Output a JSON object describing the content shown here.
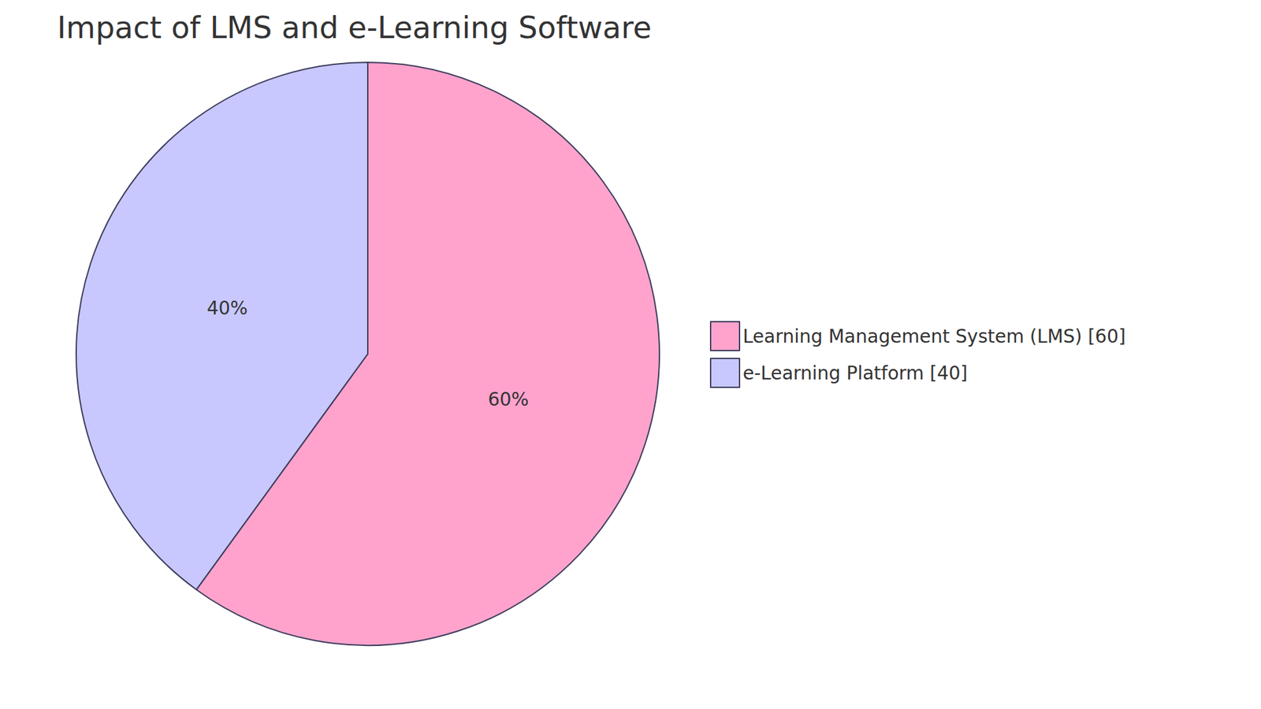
{
  "chart_data": {
    "type": "pie",
    "title": "Impact of LMS and e-Learning Software",
    "categories": [
      "Learning Management System (LMS) [60]",
      "e-Learning Platform [40]"
    ],
    "values": [
      60,
      40
    ],
    "value_labels": [
      "60%",
      "40%"
    ],
    "colors": [
      "#ffa3cd",
      "#c8c8fe"
    ],
    "data_labels": true,
    "legend": "right"
  }
}
